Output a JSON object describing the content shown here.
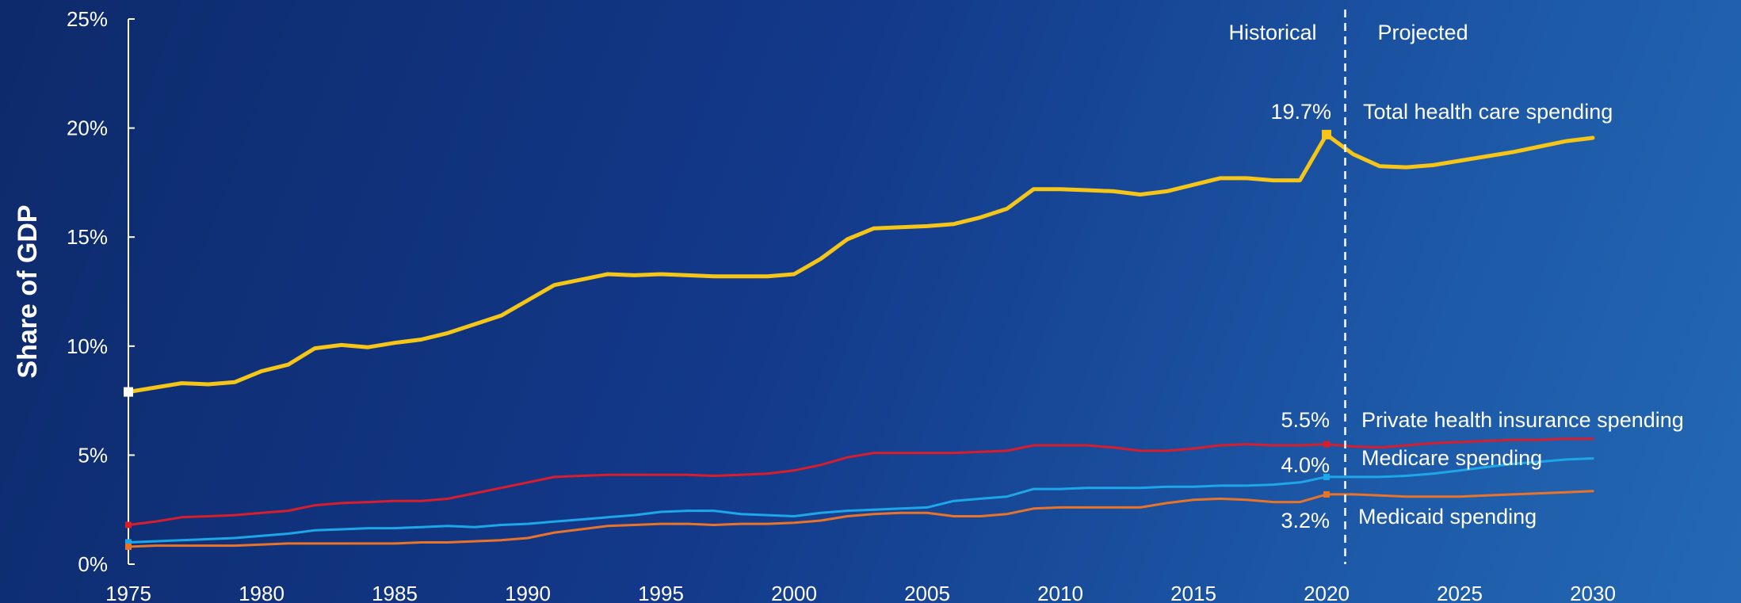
{
  "chart_data": {
    "type": "line",
    "ylabel": "Share of GDP",
    "xlim": [
      1975,
      2030
    ],
    "ylim": [
      0,
      25
    ],
    "y_ticks": [
      "0%",
      "5%",
      "10%",
      "15%",
      "20%",
      "25%"
    ],
    "x_ticks": [
      "1975",
      "1980",
      "1985",
      "1990",
      "1995",
      "2000",
      "2005",
      "2010",
      "2015",
      "2020",
      "2025",
      "2030"
    ],
    "grid": false,
    "divider": {
      "x": 2020.7,
      "left_label": "Historical",
      "right_label": "Projected"
    },
    "x": [
      1975,
      1976,
      1977,
      1978,
      1979,
      1980,
      1981,
      1982,
      1983,
      1984,
      1985,
      1986,
      1987,
      1988,
      1989,
      1990,
      1991,
      1992,
      1993,
      1994,
      1995,
      1996,
      1997,
      1998,
      1999,
      2000,
      2001,
      2002,
      2003,
      2004,
      2005,
      2006,
      2007,
      2008,
      2009,
      2010,
      2011,
      2012,
      2013,
      2014,
      2015,
      2016,
      2017,
      2018,
      2019,
      2020,
      2021,
      2022,
      2023,
      2024,
      2025,
      2026,
      2027,
      2028,
      2029,
      2030
    ],
    "series": [
      {
        "name": "Total health care spending",
        "color": "#f5c518",
        "values": [
          7.9,
          8.1,
          8.3,
          8.25,
          8.35,
          8.85,
          9.15,
          9.9,
          10.05,
          9.95,
          10.15,
          10.3,
          10.6,
          11.0,
          11.4,
          12.1,
          12.8,
          13.05,
          13.3,
          13.25,
          13.3,
          13.25,
          13.2,
          13.2,
          13.2,
          13.3,
          14.0,
          14.9,
          15.4,
          15.45,
          15.5,
          15.6,
          15.9,
          16.3,
          17.2,
          17.2,
          17.15,
          17.1,
          16.95,
          17.1,
          17.4,
          17.7,
          17.7,
          17.6,
          17.6,
          19.7,
          18.8,
          18.25,
          18.2,
          18.3,
          18.5,
          18.7,
          18.9,
          19.15,
          19.4,
          19.55
        ],
        "end_label": "19.7%"
      },
      {
        "name": "Private health insurance spending",
        "color": "#d81e2c",
        "values": [
          1.8,
          1.95,
          2.15,
          2.2,
          2.25,
          2.35,
          2.45,
          2.7,
          2.8,
          2.85,
          2.9,
          2.9,
          3.0,
          3.25,
          3.5,
          3.75,
          4.0,
          4.05,
          4.1,
          4.1,
          4.1,
          4.1,
          4.05,
          4.1,
          4.15,
          4.3,
          4.55,
          4.9,
          5.1,
          5.1,
          5.1,
          5.1,
          5.15,
          5.2,
          5.45,
          5.45,
          5.45,
          5.35,
          5.2,
          5.2,
          5.3,
          5.45,
          5.5,
          5.45,
          5.45,
          5.5,
          5.4,
          5.35,
          5.45,
          5.55,
          5.6,
          5.65,
          5.7,
          5.7,
          5.75,
          5.75
        ],
        "end_label": "5.5%"
      },
      {
        "name": "Medicare spending",
        "color": "#1ea7e8",
        "values": [
          1.0,
          1.05,
          1.1,
          1.15,
          1.2,
          1.3,
          1.4,
          1.55,
          1.6,
          1.65,
          1.65,
          1.7,
          1.75,
          1.7,
          1.8,
          1.85,
          1.95,
          2.05,
          2.15,
          2.25,
          2.4,
          2.45,
          2.45,
          2.3,
          2.25,
          2.2,
          2.35,
          2.45,
          2.5,
          2.55,
          2.6,
          2.9,
          3.0,
          3.1,
          3.45,
          3.45,
          3.5,
          3.5,
          3.5,
          3.55,
          3.55,
          3.6,
          3.6,
          3.65,
          3.75,
          4.0,
          4.0,
          4.0,
          4.05,
          4.15,
          4.3,
          4.45,
          4.6,
          4.7,
          4.8,
          4.85
        ],
        "end_label": "4.0%"
      },
      {
        "name": "Medicaid spending",
        "color": "#e8742a",
        "values": [
          0.8,
          0.85,
          0.85,
          0.85,
          0.85,
          0.9,
          0.95,
          0.95,
          0.95,
          0.95,
          0.95,
          1.0,
          1.0,
          1.05,
          1.1,
          1.2,
          1.45,
          1.6,
          1.75,
          1.8,
          1.85,
          1.85,
          1.8,
          1.85,
          1.85,
          1.9,
          2.0,
          2.2,
          2.3,
          2.35,
          2.35,
          2.2,
          2.2,
          2.3,
          2.55,
          2.6,
          2.6,
          2.6,
          2.6,
          2.8,
          2.95,
          3.0,
          2.95,
          2.85,
          2.85,
          3.2,
          3.2,
          3.15,
          3.1,
          3.1,
          3.1,
          3.15,
          3.2,
          3.25,
          3.3,
          3.35
        ],
        "end_label": "3.2%"
      }
    ]
  }
}
